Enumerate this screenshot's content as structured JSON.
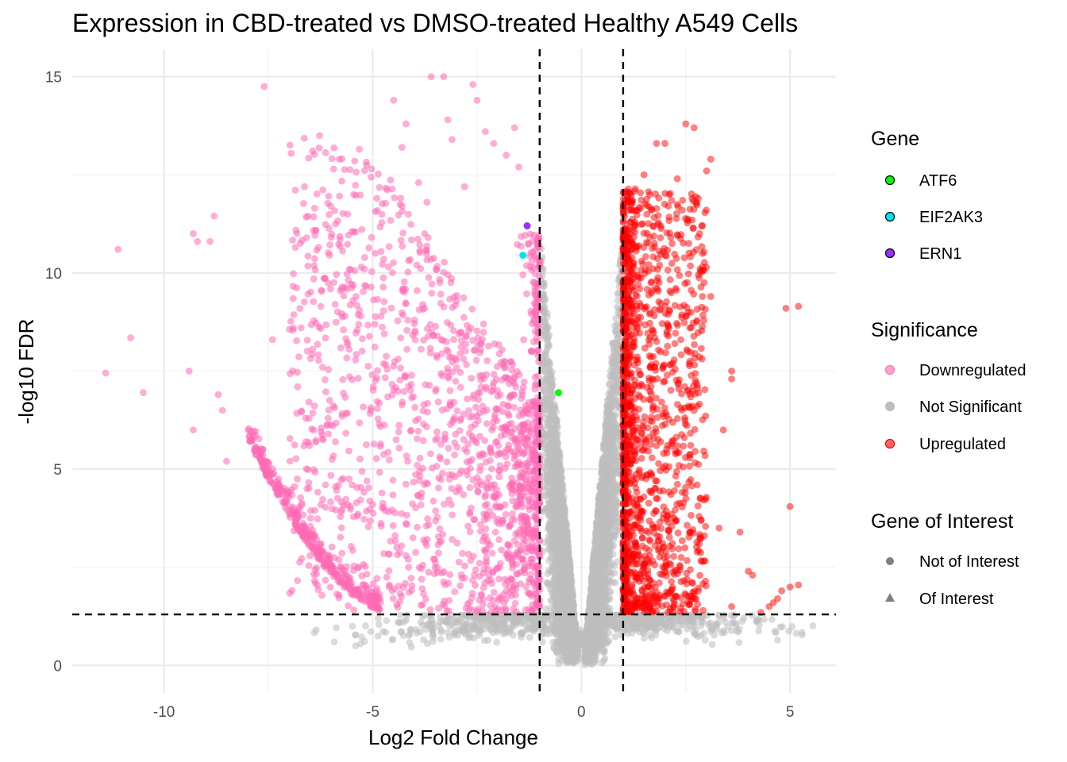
{
  "chart_data": {
    "type": "scatter",
    "title": "Expression in CBD-treated vs DMSO-treated Healthy A549 Cells",
    "xlabel": "Log2 Fold Change",
    "ylabel": "-log10 FDR",
    "xlim": [
      -12.2,
      6.1
    ],
    "ylim": [
      -0.7,
      15.7
    ],
    "xticks": [
      -10,
      -5,
      0,
      5
    ],
    "yticks": [
      0,
      5,
      10,
      15
    ],
    "grid": true,
    "thresholds": {
      "log2fc": [
        -1,
        1
      ],
      "neg_log10_fdr": 1.3
    },
    "colors": {
      "downregulated": "#ff69b4",
      "not_significant": "#bebebe",
      "upregulated": "#ff0000",
      "ATF6": "#00ff00",
      "EIF2AK3": "#00e5ee",
      "ERN1": "#9b30ff"
    },
    "genes_of_interest": [
      {
        "gene": "ATF6",
        "x": -0.55,
        "y": 6.95
      },
      {
        "gene": "EIF2AK3",
        "x": -1.4,
        "y": 10.45
      },
      {
        "gene": "ERN1",
        "x": -1.3,
        "y": 11.2
      }
    ],
    "outlier_points": {
      "downregulated": [
        [
          -11.4,
          7.45
        ],
        [
          -11.1,
          10.6
        ],
        [
          -10.8,
          8.35
        ],
        [
          -10.5,
          6.95
        ],
        [
          -9.4,
          7.5
        ],
        [
          -9.3,
          11.0
        ],
        [
          -9.2,
          10.8
        ],
        [
          -9.3,
          6.0
        ],
        [
          -8.9,
          10.8
        ],
        [
          -8.8,
          11.45
        ],
        [
          -8.7,
          6.9
        ],
        [
          -8.6,
          6.5
        ],
        [
          -8.5,
          5.2
        ],
        [
          -7.6,
          14.75
        ],
        [
          -7.4,
          8.3
        ],
        [
          -6.9,
          8.6
        ],
        [
          -6.8,
          7.1
        ],
        [
          -6.6,
          5.7
        ],
        [
          -6.3,
          10.65
        ],
        [
          -6.2,
          7.6
        ],
        [
          -5.9,
          9.2
        ],
        [
          -5.8,
          12.9
        ],
        [
          -5.6,
          11.5
        ],
        [
          -5.4,
          9.4
        ],
        [
          -5.2,
          10.1
        ],
        [
          -4.9,
          11.9
        ],
        [
          -4.8,
          8.9
        ],
        [
          -4.5,
          14.4
        ],
        [
          -4.3,
          13.2
        ],
        [
          -4.2,
          13.8
        ],
        [
          -3.9,
          12.3
        ],
        [
          -3.7,
          11.8
        ],
        [
          -3.6,
          15.0
        ],
        [
          -3.3,
          15.0
        ],
        [
          -3.2,
          13.9
        ],
        [
          -3.1,
          13.4
        ],
        [
          -2.8,
          12.2
        ],
        [
          -2.6,
          14.8
        ],
        [
          -2.5,
          14.4
        ],
        [
          -2.3,
          13.6
        ],
        [
          -2.1,
          13.3
        ],
        [
          -1.8,
          13.0
        ],
        [
          -1.6,
          13.7
        ],
        [
          -1.5,
          12.7
        ]
      ],
      "upregulated": [
        [
          1.2,
          11.8
        ],
        [
          1.5,
          12.5
        ],
        [
          1.8,
          13.3
        ],
        [
          2.0,
          13.3
        ],
        [
          2.3,
          12.4
        ],
        [
          2.5,
          13.8
        ],
        [
          2.7,
          13.7
        ],
        [
          2.8,
          11.9
        ],
        [
          3.0,
          12.6
        ],
        [
          3.1,
          12.9
        ],
        [
          2.6,
          8.6
        ],
        [
          2.9,
          9.4
        ],
        [
          3.1,
          9.4
        ],
        [
          3.6,
          7.5
        ],
        [
          3.6,
          7.3
        ],
        [
          3.4,
          6.0
        ],
        [
          3.3,
          3.5
        ],
        [
          3.8,
          3.4
        ],
        [
          4.0,
          2.4
        ],
        [
          4.1,
          2.3
        ],
        [
          4.3,
          1.35
        ],
        [
          4.5,
          1.5
        ],
        [
          4.6,
          1.6
        ],
        [
          4.9,
          9.1
        ],
        [
          5.2,
          9.15
        ],
        [
          5.0,
          4.05
        ],
        [
          4.7,
          1.7
        ],
        [
          4.8,
          1.9
        ],
        [
          5.0,
          2.0
        ],
        [
          5.2,
          2.05
        ],
        [
          3.6,
          1.5
        ]
      ]
    }
  },
  "legend": {
    "gene": {
      "title": "Gene",
      "items": [
        {
          "label": "ATF6",
          "color": "#00ff00"
        },
        {
          "label": "EIF2AK3",
          "color": "#00e5ee"
        },
        {
          "label": "ERN1",
          "color": "#9b30ff"
        }
      ]
    },
    "significance": {
      "title": "Significance",
      "items": [
        {
          "label": "Downregulated",
          "color": "#ff69b4"
        },
        {
          "label": "Not Significant",
          "color": "#bebebe"
        },
        {
          "label": "Upregulated",
          "color": "#ff0000"
        }
      ]
    },
    "interest": {
      "title": "Gene of Interest",
      "items": [
        {
          "label": "Not of Interest",
          "shape": "circle",
          "color": "#7f7f7f"
        },
        {
          "label": "Of Interest",
          "shape": "triangle",
          "color": "#7f7f7f"
        }
      ]
    }
  }
}
